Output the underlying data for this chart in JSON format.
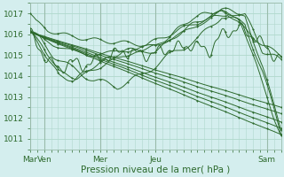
{
  "bg_color": "#d4eeee",
  "grid_color": "#b0d8cc",
  "line_color": "#2d6a2d",
  "ylabel": "Pression niveau de la mer( hPa )",
  "ylim": [
    1010.5,
    1017.5
  ],
  "yticks": [
    1011,
    1012,
    1013,
    1014,
    1015,
    1016,
    1017
  ],
  "xtick_labels": [
    "Mar",
    "Ven",
    "Mer",
    "Jeu",
    "Sam"
  ],
  "xtick_positions": [
    0,
    12,
    60,
    108,
    204
  ],
  "total_hours": 216,
  "tick_fontsize": 6.5,
  "label_fontsize": 7.5
}
